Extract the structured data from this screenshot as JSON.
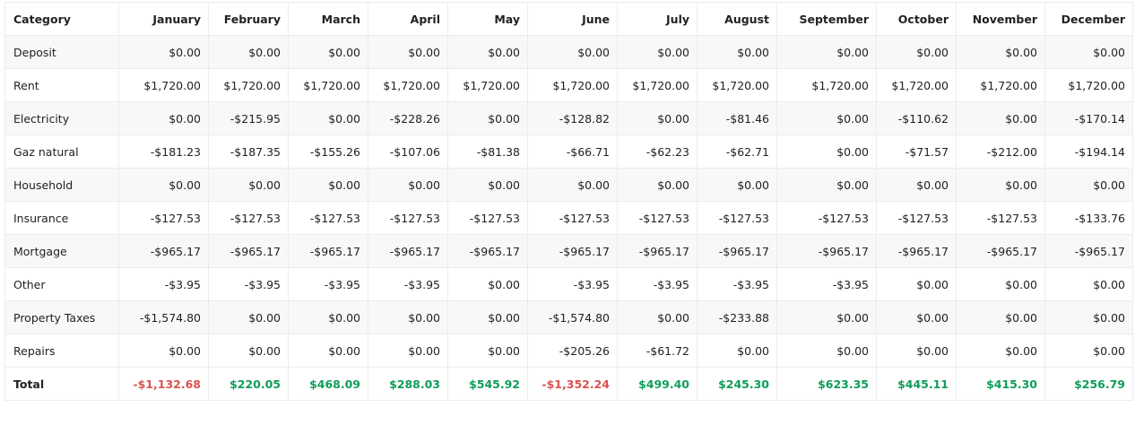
{
  "table": {
    "headers": [
      "Category",
      "January",
      "February",
      "March",
      "April",
      "May",
      "June",
      "July",
      "August",
      "September",
      "October",
      "November",
      "December"
    ],
    "rows": [
      {
        "category": "Deposit",
        "values": [
          "$0.00",
          "$0.00",
          "$0.00",
          "$0.00",
          "$0.00",
          "$0.00",
          "$0.00",
          "$0.00",
          "$0.00",
          "$0.00",
          "$0.00",
          "$0.00"
        ]
      },
      {
        "category": "Rent",
        "values": [
          "$1,720.00",
          "$1,720.00",
          "$1,720.00",
          "$1,720.00",
          "$1,720.00",
          "$1,720.00",
          "$1,720.00",
          "$1,720.00",
          "$1,720.00",
          "$1,720.00",
          "$1,720.00",
          "$1,720.00"
        ]
      },
      {
        "category": "Electricity",
        "values": [
          "$0.00",
          "-$215.95",
          "$0.00",
          "-$228.26",
          "$0.00",
          "-$128.82",
          "$0.00",
          "-$81.46",
          "$0.00",
          "-$110.62",
          "$0.00",
          "-$170.14"
        ]
      },
      {
        "category": "Gaz natural",
        "values": [
          "-$181.23",
          "-$187.35",
          "-$155.26",
          "-$107.06",
          "-$81.38",
          "-$66.71",
          "-$62.23",
          "-$62.71",
          "$0.00",
          "-$71.57",
          "-$212.00",
          "-$194.14"
        ]
      },
      {
        "category": "Household",
        "values": [
          "$0.00",
          "$0.00",
          "$0.00",
          "$0.00",
          "$0.00",
          "$0.00",
          "$0.00",
          "$0.00",
          "$0.00",
          "$0.00",
          "$0.00",
          "$0.00"
        ]
      },
      {
        "category": "Insurance",
        "values": [
          "-$127.53",
          "-$127.53",
          "-$127.53",
          "-$127.53",
          "-$127.53",
          "-$127.53",
          "-$127.53",
          "-$127.53",
          "-$127.53",
          "-$127.53",
          "-$127.53",
          "-$133.76"
        ]
      },
      {
        "category": "Mortgage",
        "values": [
          "-$965.17",
          "-$965.17",
          "-$965.17",
          "-$965.17",
          "-$965.17",
          "-$965.17",
          "-$965.17",
          "-$965.17",
          "-$965.17",
          "-$965.17",
          "-$965.17",
          "-$965.17"
        ]
      },
      {
        "category": "Other",
        "values": [
          "-$3.95",
          "-$3.95",
          "-$3.95",
          "-$3.95",
          "$0.00",
          "-$3.95",
          "-$3.95",
          "-$3.95",
          "-$3.95",
          "$0.00",
          "$0.00",
          "$0.00"
        ]
      },
      {
        "category": "Property Taxes",
        "values": [
          "-$1,574.80",
          "$0.00",
          "$0.00",
          "$0.00",
          "$0.00",
          "-$1,574.80",
          "$0.00",
          "-$233.88",
          "$0.00",
          "$0.00",
          "$0.00",
          "$0.00"
        ]
      },
      {
        "category": "Repairs",
        "values": [
          "$0.00",
          "$0.00",
          "$0.00",
          "$0.00",
          "$0.00",
          "-$205.26",
          "-$61.72",
          "$0.00",
          "$0.00",
          "$0.00",
          "$0.00",
          "$0.00"
        ]
      }
    ],
    "total": {
      "label": "Total",
      "values": [
        "-$1,132.68",
        "$220.05",
        "$468.09",
        "$288.03",
        "$545.92",
        "-$1,352.24",
        "$499.40",
        "$245.30",
        "$623.35",
        "$445.11",
        "$415.30",
        "$256.79"
      ]
    }
  },
  "colors": {
    "negative_total": "#d9534f",
    "positive_total": "#0f9d58",
    "stripe": "#f8f8f8",
    "border": "#ececec"
  }
}
